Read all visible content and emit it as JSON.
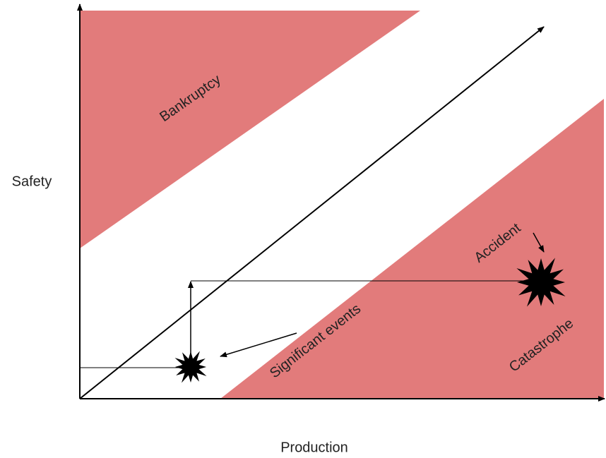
{
  "axes": {
    "y_label": "Safety",
    "x_label": "Production"
  },
  "regions": {
    "top": "Bankruptcy",
    "bottom": "Catastrophe"
  },
  "annotations": {
    "small_event": "Significant events",
    "large_event": "Accident"
  }
}
